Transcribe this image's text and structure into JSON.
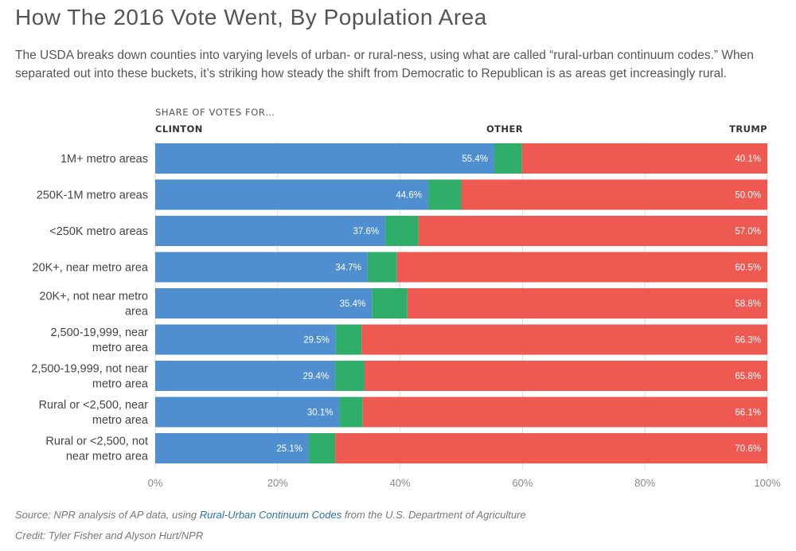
{
  "header": {
    "title": "How The 2016 Vote Went, By Population Area",
    "subtitle": "The USDA breaks down counties into varying levels of urban- or rural-ness, using what are called “rural-urban continuum codes.” When separated out into these buckets, it’s striking how steady the shift from Democratic to Republican is as areas get increasingly rural."
  },
  "colors": {
    "clinton": "#4f8fcf",
    "other": "#2fae6a",
    "trump": "#ee5a52",
    "grid": "#dddddd"
  },
  "chart_data": {
    "type": "bar",
    "stacked": true,
    "orientation": "horizontal",
    "overline": "SHARE OF VOTES FOR…",
    "column_headers": {
      "clinton": "CLINTON",
      "other": "OTHER",
      "trump": "TRUMP"
    },
    "categories": [
      "1M+ metro areas",
      "250K-1M metro areas",
      "<250K metro areas",
      "20K+, near metro area",
      "20K+, not near metro area",
      "2,500-19,999, near metro area",
      "2,500-19,999, not near metro area",
      "Rural or <2,500, near metro area",
      "Rural or <2,500, not near metro area"
    ],
    "series": [
      {
        "name": "CLINTON",
        "values": [
          55.4,
          44.6,
          37.6,
          34.7,
          35.4,
          29.5,
          29.4,
          30.1,
          25.1
        ],
        "labels": [
          "55.4%",
          "44.6%",
          "37.6%",
          "34.7%",
          "35.4%",
          "29.5%",
          "29.4%",
          "30.1%",
          "25.1%"
        ]
      },
      {
        "name": "OTHER",
        "values": [
          4.5,
          5.4,
          5.4,
          4.8,
          5.8,
          4.2,
          4.8,
          3.8,
          4.3
        ]
      },
      {
        "name": "TRUMP",
        "values": [
          40.1,
          50.0,
          57.0,
          60.5,
          58.8,
          66.3,
          65.8,
          66.1,
          70.6
        ],
        "labels": [
          "40.1%",
          "50.0%",
          "57.0%",
          "60.5%",
          "58.8%",
          "66.3%",
          "65.8%",
          "66.1%",
          "70.6%"
        ]
      }
    ],
    "x_ticks": [
      "0%",
      "20%",
      "40%",
      "60%",
      "80%",
      "100%"
    ],
    "xlim": [
      0,
      100
    ],
    "grid": true
  },
  "footer": {
    "source_prefix": "Source: NPR analysis of AP data, using ",
    "source_link": "Rural-Urban Continuum Codes",
    "source_suffix": " from the U.S. Department of Agriculture",
    "credit": "Credit: Tyler Fisher and Alyson Hurt/NPR"
  }
}
